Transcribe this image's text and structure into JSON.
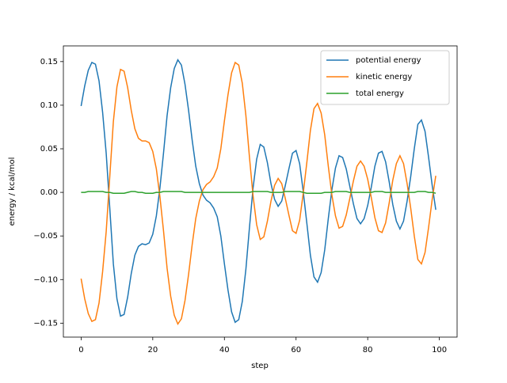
{
  "chart_data": {
    "type": "line",
    "x_label": "step",
    "y_label": "energy / kcal/mol",
    "x": [
      0,
      1,
      2,
      3,
      4,
      5,
      6,
      7,
      8,
      9,
      10,
      11,
      12,
      13,
      14,
      15,
      16,
      17,
      18,
      19,
      20,
      21,
      22,
      23,
      24,
      25,
      26,
      27,
      28,
      29,
      30,
      31,
      32,
      33,
      34,
      35,
      36,
      37,
      38,
      39,
      40,
      41,
      42,
      43,
      44,
      45,
      46,
      47,
      48,
      49,
      50,
      51,
      52,
      53,
      54,
      55,
      56,
      57,
      58,
      59,
      60,
      61,
      62,
      63,
      64,
      65,
      66,
      67,
      68,
      69,
      70,
      71,
      72,
      73,
      74,
      75,
      76,
      77,
      78,
      79,
      80,
      81,
      82,
      83,
      84,
      85,
      86,
      87,
      88,
      89,
      90,
      91,
      92,
      93,
      94,
      95,
      96,
      97,
      98,
      99
    ],
    "series": [
      {
        "name": "potential energy",
        "color": "#1f77b4",
        "values": [
          0.099,
          0.122,
          0.14,
          0.149,
          0.147,
          0.128,
          0.092,
          0.045,
          -0.018,
          -0.082,
          -0.122,
          -0.142,
          -0.14,
          -0.12,
          -0.093,
          -0.072,
          -0.062,
          -0.059,
          -0.06,
          -0.058,
          -0.048,
          -0.027,
          0.005,
          0.045,
          0.088,
          0.12,
          0.142,
          0.152,
          0.146,
          0.124,
          0.094,
          0.06,
          0.03,
          0.01,
          -0.003,
          -0.009,
          -0.012,
          -0.018,
          -0.028,
          -0.05,
          -0.082,
          -0.112,
          -0.137,
          -0.149,
          -0.146,
          -0.125,
          -0.088,
          -0.04,
          0.005,
          0.038,
          0.055,
          0.052,
          0.034,
          0.01,
          -0.008,
          -0.016,
          -0.01,
          0.008,
          0.027,
          0.045,
          0.048,
          0.033,
          0.001,
          -0.035,
          -0.072,
          -0.097,
          -0.103,
          -0.092,
          -0.066,
          -0.03,
          0.003,
          0.028,
          0.042,
          0.04,
          0.027,
          0.007,
          -0.013,
          -0.03,
          -0.036,
          -0.03,
          -0.015,
          0.006,
          0.03,
          0.045,
          0.047,
          0.035,
          0.012,
          -0.014,
          -0.033,
          -0.042,
          -0.033,
          -0.01,
          0.018,
          0.05,
          0.078,
          0.083,
          0.07,
          0.04,
          0.008,
          -0.02
        ]
      },
      {
        "name": "kinetic energy",
        "color": "#ff7f0e",
        "values": [
          -0.099,
          -0.122,
          -0.139,
          -0.148,
          -0.146,
          -0.127,
          -0.091,
          -0.045,
          0.018,
          0.081,
          0.121,
          0.141,
          0.139,
          0.12,
          0.094,
          0.073,
          0.062,
          0.059,
          0.059,
          0.057,
          0.047,
          0.027,
          -0.005,
          -0.044,
          -0.087,
          -0.119,
          -0.141,
          -0.151,
          -0.145,
          -0.124,
          -0.094,
          -0.06,
          -0.03,
          -0.01,
          0.003,
          0.009,
          0.012,
          0.018,
          0.028,
          0.05,
          0.082,
          0.112,
          0.137,
          0.149,
          0.146,
          0.125,
          0.088,
          0.04,
          -0.004,
          -0.037,
          -0.054,
          -0.051,
          -0.033,
          -0.01,
          0.008,
          0.016,
          0.01,
          -0.007,
          -0.026,
          -0.044,
          -0.047,
          -0.032,
          -0.001,
          0.034,
          0.071,
          0.096,
          0.102,
          0.091,
          0.066,
          0.03,
          -0.003,
          -0.027,
          -0.041,
          -0.039,
          -0.026,
          -0.007,
          0.013,
          0.03,
          0.036,
          0.03,
          0.015,
          -0.006,
          -0.029,
          -0.044,
          -0.046,
          -0.035,
          -0.012,
          0.014,
          0.033,
          0.042,
          0.033,
          0.01,
          -0.018,
          -0.05,
          -0.077,
          -0.082,
          -0.069,
          -0.04,
          -0.008,
          0.019
        ]
      },
      {
        "name": "total energy",
        "color": "#2ca02c",
        "values": [
          0.0,
          0.0,
          0.001,
          0.001,
          0.001,
          0.001,
          0.001,
          0.0,
          0.0,
          -0.001,
          -0.001,
          -0.001,
          -0.001,
          0.0,
          0.001,
          0.001,
          0.0,
          0.0,
          -0.001,
          -0.001,
          -0.001,
          0.0,
          0.0,
          0.001,
          0.001,
          0.001,
          0.001,
          0.001,
          0.001,
          0.0,
          0.0,
          0.0,
          0.0,
          0.0,
          0.0,
          0.0,
          0.0,
          0.0,
          0.0,
          0.0,
          0.0,
          0.0,
          0.0,
          0.0,
          0.0,
          0.0,
          0.0,
          0.0,
          0.001,
          0.001,
          0.001,
          0.001,
          0.001,
          0.0,
          0.0,
          0.0,
          0.0,
          0.001,
          0.001,
          0.001,
          0.001,
          0.001,
          0.0,
          -0.001,
          -0.001,
          -0.001,
          -0.001,
          -0.001,
          0.0,
          0.0,
          0.0,
          0.001,
          0.001,
          0.001,
          0.001,
          0.0,
          0.0,
          0.0,
          0.0,
          0.0,
          0.0,
          0.0,
          0.001,
          0.001,
          0.001,
          0.0,
          0.0,
          0.0,
          0.0,
          0.0,
          0.0,
          0.0,
          0.0,
          0.0,
          0.001,
          0.001,
          0.001,
          0.0,
          0.0,
          -0.001
        ]
      }
    ],
    "xlim": [
      -4.95,
      104.95
    ],
    "xticks": [
      0,
      20,
      40,
      60,
      80,
      100
    ],
    "ylim": [
      -0.166,
      0.168
    ],
    "yticks": [
      {
        "value": -0.15,
        "label": "−0.15"
      },
      {
        "value": -0.1,
        "label": "−0.10"
      },
      {
        "value": -0.05,
        "label": "−0.05"
      },
      {
        "value": 0,
        "label": "0.00"
      },
      0.05,
      {
        "value": 0.1,
        "label": "0.10"
      },
      0.15
    ],
    "legend": "upper right"
  }
}
